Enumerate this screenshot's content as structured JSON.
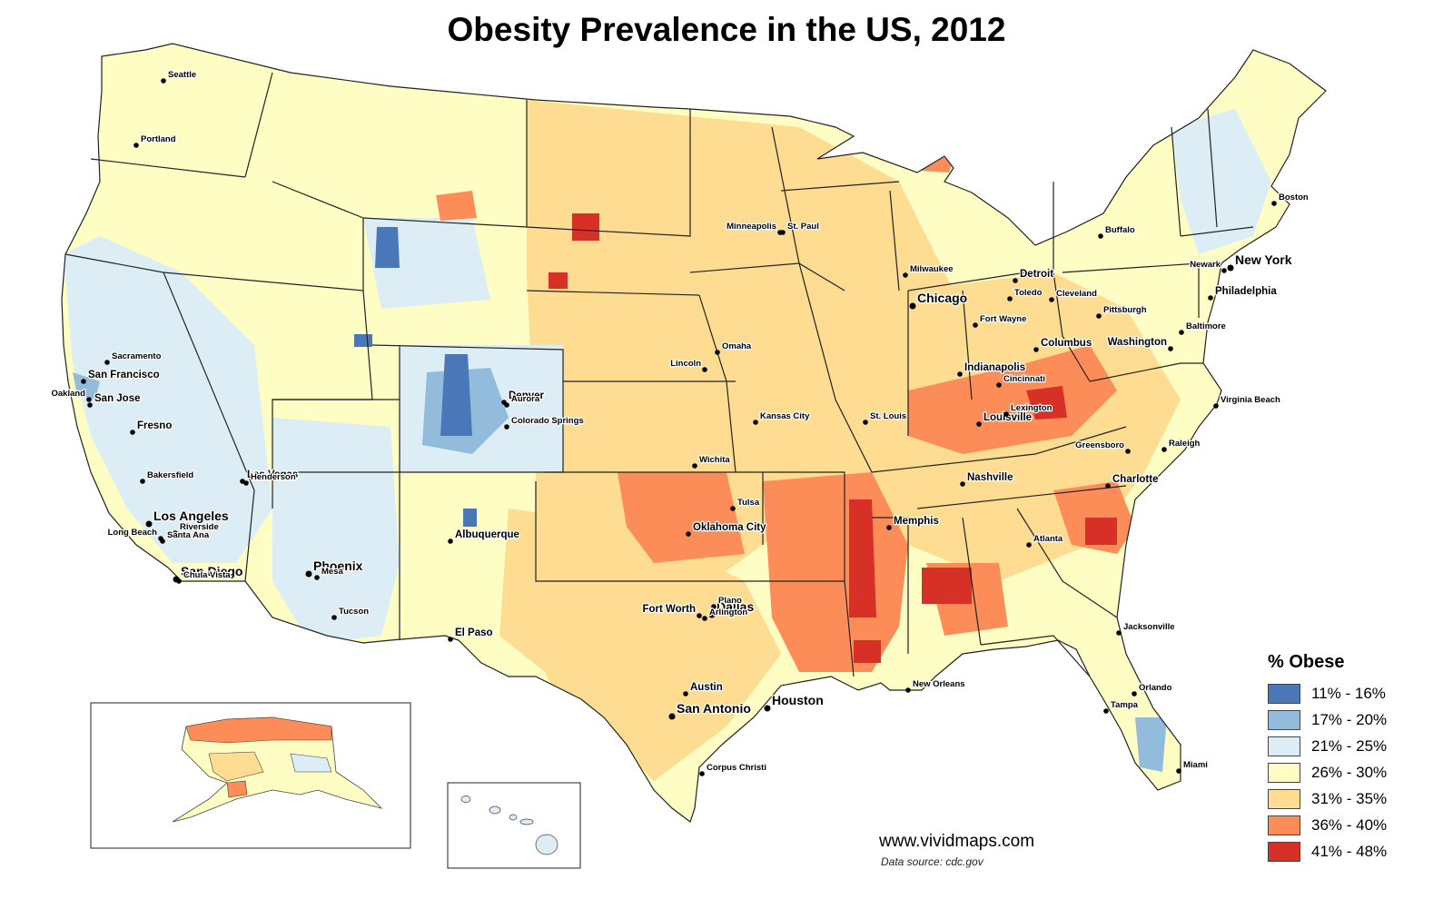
{
  "title": "Obesity Prevalence in the US, 2012",
  "legend": {
    "title": "% Obese",
    "classes": [
      {
        "label": "11% - 16%",
        "color": "#4a77b8"
      },
      {
        "label": "17% - 20%",
        "color": "#93bbdc"
      },
      {
        "label": "21% - 25%",
        "color": "#dcedf5"
      },
      {
        "label": "26% - 30%",
        "color": "#fdfdc4"
      },
      {
        "label": "31% - 35%",
        "color": "#fedc92"
      },
      {
        "label": "36% - 40%",
        "color": "#fc8d59"
      },
      {
        "label": "41% - 48%",
        "color": "#d73027"
      }
    ]
  },
  "credit": "www.vividmaps.com",
  "source": "Data source: cdc.gov",
  "cities": [
    {
      "name": "Seattle",
      "size": "s"
    },
    {
      "name": "Portland",
      "size": "s"
    },
    {
      "name": "Sacramento",
      "size": "s"
    },
    {
      "name": "San Francisco",
      "size": "m"
    },
    {
      "name": "Oakland",
      "size": "s"
    },
    {
      "name": "San Jose",
      "size": "m"
    },
    {
      "name": "Fresno",
      "size": "m"
    },
    {
      "name": "Bakersfield",
      "size": "s"
    },
    {
      "name": "Los Angeles",
      "size": "l"
    },
    {
      "name": "Riverside",
      "size": "s"
    },
    {
      "name": "Long Beach",
      "size": "s"
    },
    {
      "name": "Santa Ana",
      "size": "s"
    },
    {
      "name": "San Diego",
      "size": "l"
    },
    {
      "name": "Chula Vista",
      "size": "s"
    },
    {
      "name": "Las Vegas",
      "size": "m"
    },
    {
      "name": "Henderson",
      "size": "s"
    },
    {
      "name": "Phoenix",
      "size": "l"
    },
    {
      "name": "Mesa",
      "size": "s"
    },
    {
      "name": "Tucson",
      "size": "s"
    },
    {
      "name": "Albuquerque",
      "size": "m"
    },
    {
      "name": "El Paso",
      "size": "m"
    },
    {
      "name": "Denver",
      "size": "m"
    },
    {
      "name": "Aurora",
      "size": "s"
    },
    {
      "name": "Colorado Springs",
      "size": "s"
    },
    {
      "name": "Minneapolis",
      "size": "s"
    },
    {
      "name": "St. Paul",
      "size": "s"
    },
    {
      "name": "Omaha",
      "size": "s"
    },
    {
      "name": "Lincoln",
      "size": "s"
    },
    {
      "name": "Kansas City",
      "size": "s"
    },
    {
      "name": "Wichita",
      "size": "s"
    },
    {
      "name": "Tulsa",
      "size": "s"
    },
    {
      "name": "Oklahoma City",
      "size": "m"
    },
    {
      "name": "Dallas",
      "size": "l"
    },
    {
      "name": "Plano",
      "size": "s"
    },
    {
      "name": "Fort Worth",
      "size": "m"
    },
    {
      "name": "Arlington",
      "size": "s"
    },
    {
      "name": "Austin",
      "size": "m"
    },
    {
      "name": "San Antonio",
      "size": "l"
    },
    {
      "name": "Houston",
      "size": "l"
    },
    {
      "name": "Corpus Christi",
      "size": "s"
    },
    {
      "name": "St. Louis",
      "size": "s"
    },
    {
      "name": "Memphis",
      "size": "m"
    },
    {
      "name": "New Orleans",
      "size": "s"
    },
    {
      "name": "Nashville",
      "size": "m"
    },
    {
      "name": "Louisville",
      "size": "m"
    },
    {
      "name": "Lexington",
      "size": "s"
    },
    {
      "name": "Indianapolis",
      "size": "m"
    },
    {
      "name": "Cincinnati",
      "size": "s"
    },
    {
      "name": "Fort Wayne",
      "size": "s"
    },
    {
      "name": "Chicago",
      "size": "l"
    },
    {
      "name": "Milwaukee",
      "size": "s"
    },
    {
      "name": "Detroit",
      "size": "m"
    },
    {
      "name": "Toledo",
      "size": "s"
    },
    {
      "name": "Cleveland",
      "size": "s"
    },
    {
      "name": "Columbus",
      "size": "m"
    },
    {
      "name": "Pittsburgh",
      "size": "s"
    },
    {
      "name": "Buffalo",
      "size": "s"
    },
    {
      "name": "Boston",
      "size": "s"
    },
    {
      "name": "New York",
      "size": "l"
    },
    {
      "name": "Newark",
      "size": "s"
    },
    {
      "name": "Philadelphia",
      "size": "m"
    },
    {
      "name": "Baltimore",
      "size": "s"
    },
    {
      "name": "Washington",
      "size": "m"
    },
    {
      "name": "Virginia Beach",
      "size": "s"
    },
    {
      "name": "Greensboro",
      "size": "s"
    },
    {
      "name": "Raleigh",
      "size": "s"
    },
    {
      "name": "Charlotte",
      "size": "m"
    },
    {
      "name": "Atlanta",
      "size": "s"
    },
    {
      "name": "Jacksonville",
      "size": "s"
    },
    {
      "name": "Orlando",
      "size": "s"
    },
    {
      "name": "Tampa",
      "size": "s"
    },
    {
      "name": "Miami",
      "size": "s"
    }
  ]
}
